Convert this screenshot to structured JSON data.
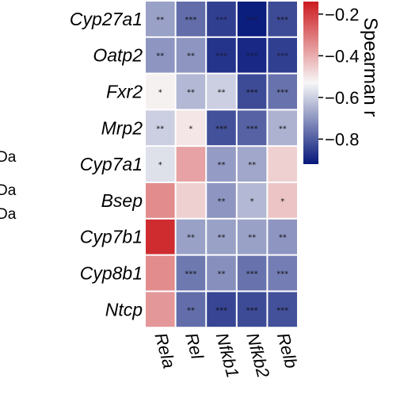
{
  "chart_data": {
    "type": "heatmap",
    "rows": [
      "Cyp27a1",
      "Oatp2",
      "Fxr2",
      "Mrp2",
      "Cyp7a1",
      "Bsep",
      "Cyp7b1",
      "Cyp8b1",
      "Ntcp"
    ],
    "columns": [
      "Rela",
      "Rel",
      "Nfkb1",
      "Nfkb2",
      "Relb"
    ],
    "values": [
      [
        -0.68,
        -0.77,
        -0.85,
        -0.91,
        -0.83
      ],
      [
        -0.7,
        -0.7,
        -0.87,
        -0.89,
        -0.85
      ],
      [
        -0.52,
        -0.64,
        -0.6,
        -0.83,
        -0.76
      ],
      [
        -0.6,
        -0.5,
        -0.82,
        -0.79,
        -0.65
      ],
      [
        -0.57,
        -0.38,
        -0.69,
        -0.67,
        -0.46
      ],
      [
        -0.34,
        -0.46,
        -0.7,
        -0.64,
        -0.44
      ],
      [
        -0.17,
        -0.68,
        -0.68,
        -0.68,
        -0.7
      ],
      [
        -0.34,
        -0.75,
        -0.71,
        -0.76,
        -0.74
      ],
      [
        -0.36,
        -0.77,
        -0.84,
        -0.83,
        -0.82
      ]
    ],
    "significance": [
      [
        "**",
        "***",
        "***",
        "***",
        "***"
      ],
      [
        "**",
        "**",
        "***",
        "***",
        "***"
      ],
      [
        "*",
        "**",
        "**",
        "***",
        "***"
      ],
      [
        "**",
        "*",
        "***",
        "***",
        "**"
      ],
      [
        "*",
        "",
        "**",
        "**",
        ""
      ],
      [
        "",
        "",
        "**",
        "*",
        "*"
      ],
      [
        "",
        "**",
        "**",
        "**",
        "**"
      ],
      [
        "",
        "***",
        "**",
        "***",
        "***"
      ],
      [
        "",
        "**",
        "***",
        "***",
        "***"
      ]
    ],
    "colorbar": {
      "title": "Spearman r",
      "ticks": [
        "−0.2",
        "−0.4",
        "−0.6",
        "−0.8"
      ],
      "tick_values": [
        -0.2,
        -0.4,
        -0.6,
        -0.8
      ],
      "range": [
        -0.92,
        -0.14
      ],
      "colors": {
        "high": "#cc1b1f",
        "mid": "#f7f7f7",
        "low": "#05177a"
      }
    }
  },
  "left_edge_fragments": [
    "Da",
    "Da",
    "Da"
  ]
}
